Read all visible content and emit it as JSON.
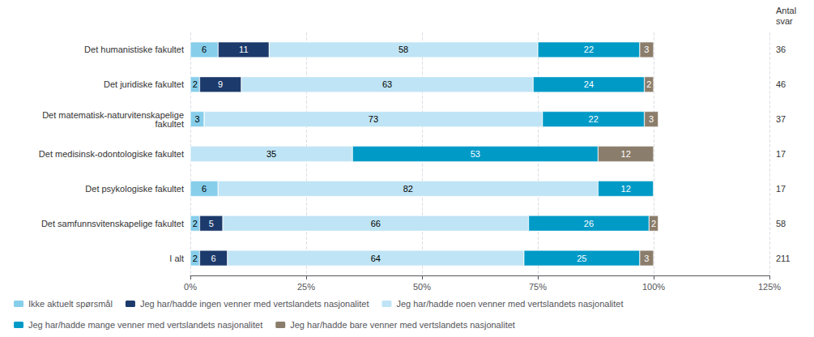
{
  "chart_data": {
    "type": "bar",
    "orientation": "horizontal",
    "stacked": true,
    "categories": [
      "Det humanistiske fakultet",
      "Det juridiske fakultet",
      "Det matematisk-naturvitenskapelige\nfakultet",
      "Det medisinsk-odontologiske fakultet",
      "Det psykologiske fakultet",
      "Det samfunnsvitenskapelige fakultet",
      "I alt"
    ],
    "n": [
      36,
      46,
      37,
      17,
      17,
      58,
      211
    ],
    "annotations": [
      {
        "text": "Antal\nsvar"
      }
    ],
    "series": [
      {
        "name": "Ikke aktuelt spørsmål",
        "color": "#87CEEB",
        "values": [
          6,
          2,
          3,
          0,
          6,
          2,
          2
        ]
      },
      {
        "name": "Jeg har/hadde ingen venner med vertslandets nasjonalitet",
        "color": "#1C3A6B",
        "values": [
          11,
          9,
          0,
          0,
          0,
          5,
          6
        ]
      },
      {
        "name": "Jeg har/hadde noen venner med vertslandets nasjonalitet",
        "color": "#BFE4F5",
        "values": [
          58,
          63,
          73,
          35,
          82,
          66,
          64
        ]
      },
      {
        "name": "Jeg har/hadde mange venner med vertslandets nasjonalitet",
        "color": "#009AC7",
        "values": [
          22,
          24,
          22,
          53,
          12,
          26,
          25
        ]
      },
      {
        "name": "Jeg har/hadde bare venner med vertslandets nasjonalitet",
        "color": "#8B7D6B",
        "values": [
          3,
          2,
          3,
          12,
          0,
          2,
          3
        ]
      }
    ],
    "xlim": [
      0,
      125
    ],
    "xticks": [
      {
        "value": 0,
        "label": "0%"
      },
      {
        "value": 25,
        "label": "25%"
      },
      {
        "value": 50,
        "label": "50%"
      },
      {
        "value": 75,
        "label": "75%"
      },
      {
        "value": 100,
        "label": "100%"
      },
      {
        "value": 125,
        "label": "125%"
      }
    ],
    "grid": true,
    "legend": "lower left",
    "data_labels": true
  }
}
